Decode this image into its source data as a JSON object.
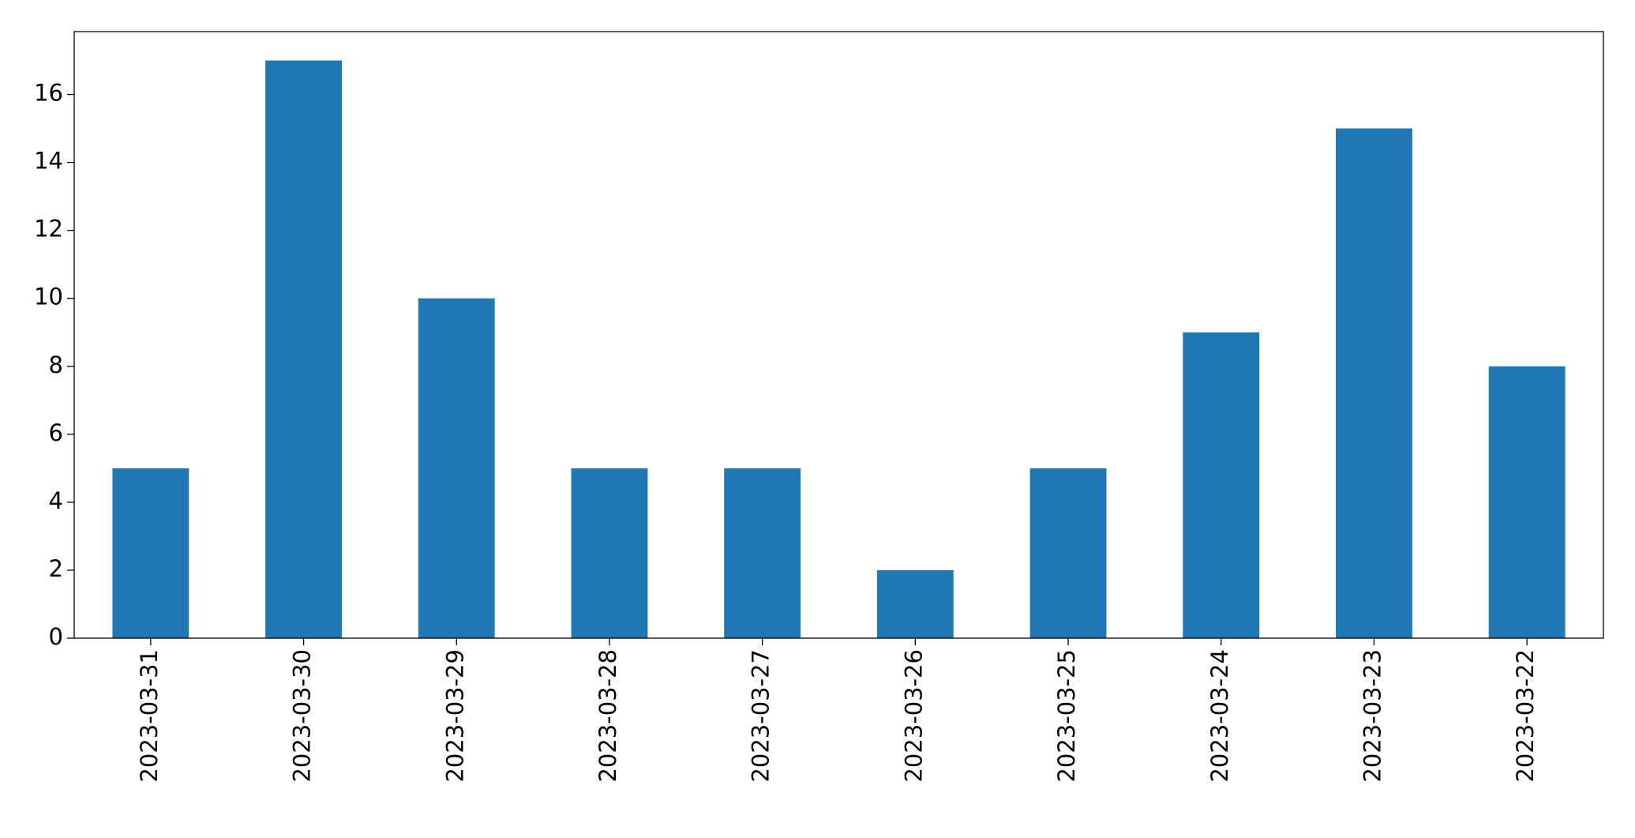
{
  "chart_data": {
    "type": "bar",
    "categories": [
      "2023-03-31",
      "2023-03-30",
      "2023-03-29",
      "2023-03-28",
      "2023-03-27",
      "2023-03-26",
      "2023-03-25",
      "2023-03-24",
      "2023-03-23",
      "2023-03-22"
    ],
    "values": [
      5,
      17,
      10,
      5,
      5,
      2,
      5,
      9,
      15,
      8
    ],
    "color": "#1f77b4",
    "ylim": [
      0,
      17.85
    ],
    "yticks": [
      0,
      2,
      4,
      6,
      8,
      10,
      12,
      14,
      16
    ],
    "grid": false
  }
}
